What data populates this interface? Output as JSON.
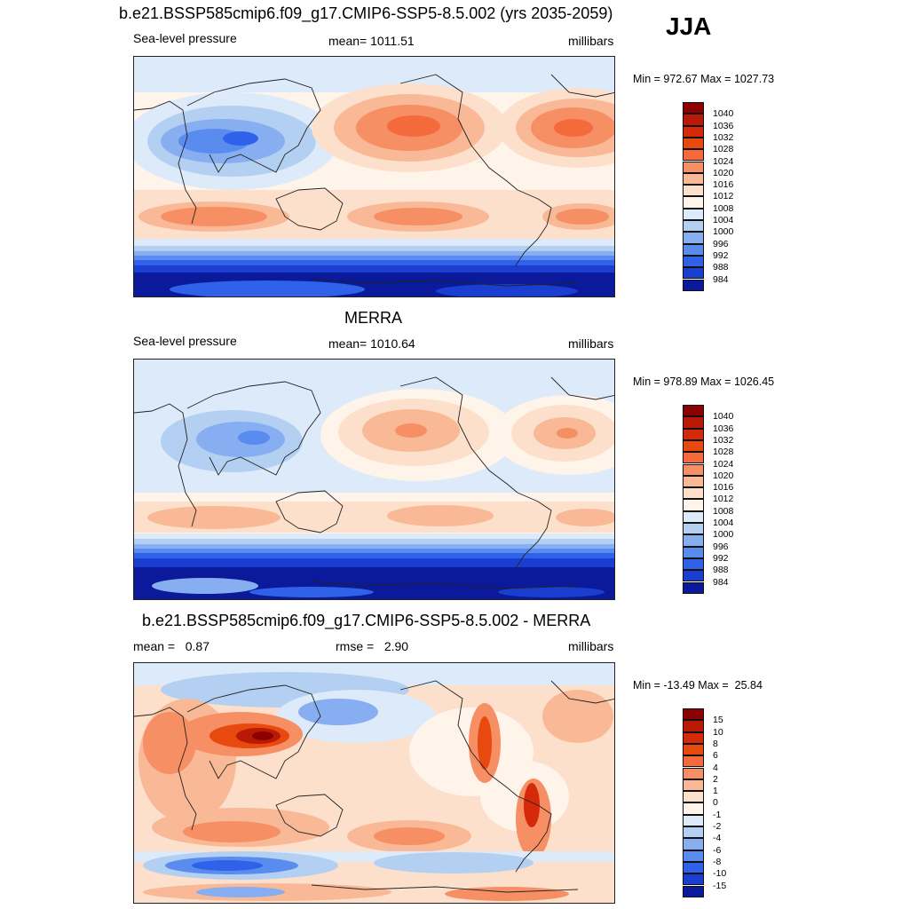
{
  "figure": {
    "main_title": "b.e21.BSSP585cmip6.f09_g17.CMIP6-SSP5-8.5.002 (yrs 2035-2059)",
    "season": "JJA"
  },
  "panels": [
    {
      "id": "model",
      "title": "",
      "left_label": "Sea-level pressure",
      "center_label": "mean= 1011.51",
      "right_label": "millibars",
      "minmax": "Min = 972.67 Max = 1027.73",
      "colorbar_labels": [
        "1040",
        "1036",
        "1032",
        "1028",
        "1024",
        "1020",
        "1016",
        "1012",
        "1008",
        "1004",
        "1000",
        "996",
        "992",
        "988",
        "984"
      ],
      "colorbar_colors": [
        "#8b0000",
        "#b81a05",
        "#d42a0a",
        "#e8490f",
        "#f46a3c",
        "#f68f64",
        "#f9b896",
        "#fde0cc",
        "#fff4ea",
        "#dceaf9",
        "#b3d0f2",
        "#87aef0",
        "#5a8cf0",
        "#2f62e8",
        "#1a3ed0",
        "#0a1a9a"
      ]
    },
    {
      "id": "obs",
      "title": "MERRA",
      "left_label": "Sea-level pressure",
      "center_label": "mean= 1010.64",
      "right_label": "millibars",
      "minmax": "Min = 978.89 Max = 1026.45",
      "colorbar_labels": [
        "1040",
        "1036",
        "1032",
        "1028",
        "1024",
        "1020",
        "1016",
        "1012",
        "1008",
        "1004",
        "1000",
        "996",
        "992",
        "988",
        "984"
      ],
      "colorbar_colors": [
        "#8b0000",
        "#b81a05",
        "#d42a0a",
        "#e8490f",
        "#f46a3c",
        "#f68f64",
        "#f9b896",
        "#fde0cc",
        "#fff4ea",
        "#dceaf9",
        "#b3d0f2",
        "#87aef0",
        "#5a8cf0",
        "#2f62e8",
        "#1a3ed0",
        "#0a1a9a"
      ]
    },
    {
      "id": "diff",
      "title": "b.e21.BSSP585cmip6.f09_g17.CMIP6-SSP5-8.5.002 - MERRA",
      "left_label": "mean =   0.87",
      "center_label": "rmse =   2.90",
      "right_label": "millibars",
      "minmax": "Min = -13.49 Max =  25.84",
      "colorbar_labels": [
        "15",
        "10",
        "8",
        "6",
        "4",
        "2",
        "1",
        "0",
        "-1",
        "-2",
        "-4",
        "-6",
        "-8",
        "-10",
        "-15"
      ],
      "colorbar_colors": [
        "#8b0000",
        "#b81a05",
        "#d42a0a",
        "#e8490f",
        "#f46a3c",
        "#f68f64",
        "#f9b896",
        "#fde0cc",
        "#fff4ea",
        "#dceaf9",
        "#b3d0f2",
        "#87aef0",
        "#5a8cf0",
        "#2f62e8",
        "#1a3ed0",
        "#0a1a9a"
      ]
    }
  ]
}
